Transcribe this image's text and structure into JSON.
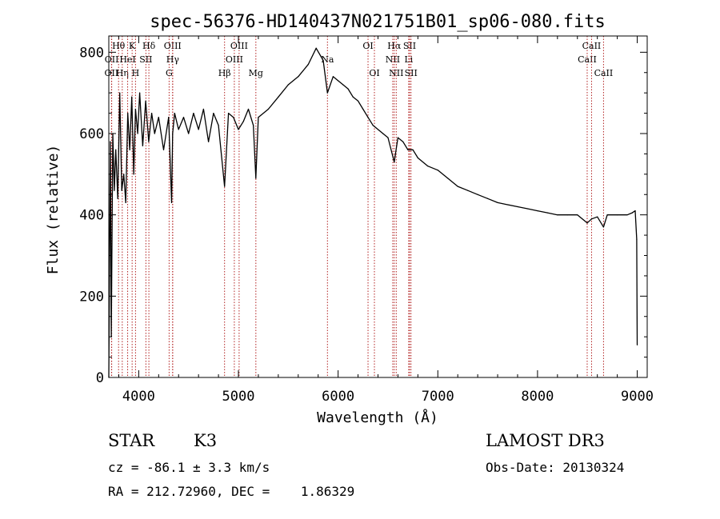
{
  "chart_data": {
    "type": "line",
    "title": "spec-56376-HD140437N021751B01_sp06-080.fits",
    "xlabel": "Wavelength (Å)",
    "ylabel": "Flux (relative)",
    "xlim": [
      3700,
      9100
    ],
    "ylim": [
      0,
      840
    ],
    "xticks": [
      4000,
      5000,
      6000,
      7000,
      8000,
      9000
    ],
    "yticks": [
      0,
      200,
      400,
      600,
      800
    ],
    "grid": false,
    "line_color": "#000000",
    "marker_color": "#b22222",
    "series": [
      {
        "x": [
          3700,
          3715,
          3725,
          3740,
          3755,
          3770,
          3790,
          3810,
          3830,
          3850,
          3870,
          3890,
          3910,
          3930,
          3950,
          3968,
          3990,
          4010,
          4040,
          4070,
          4100,
          4130,
          4160,
          4200,
          4250,
          4300,
          4330,
          4340,
          4360,
          4400,
          4450,
          4500,
          4550,
          4600,
          4650,
          4700,
          4750,
          4800,
          4861,
          4900,
          4950,
          5000,
          5050,
          5100,
          5150,
          5175,
          5200,
          5300,
          5400,
          5500,
          5600,
          5700,
          5780,
          5850,
          5893,
          5950,
          6000,
          6050,
          6100,
          6150,
          6200,
          6250,
          6300,
          6350,
          6400,
          6450,
          6500,
          6563,
          6600,
          6650,
          6700,
          6750,
          6800,
          6900,
          7000,
          7100,
          7200,
          7300,
          7400,
          7500,
          7600,
          7700,
          7800,
          7900,
          8000,
          8100,
          8200,
          8300,
          8400,
          8498,
          8542,
          8600,
          8662,
          8700,
          8800,
          8900,
          8950,
          8980,
          8995,
          9000
        ],
        "y": [
          0,
          580,
          100,
          600,
          460,
          560,
          440,
          700,
          460,
          500,
          430,
          650,
          560,
          690,
          500,
          660,
          600,
          700,
          570,
          680,
          580,
          650,
          600,
          640,
          560,
          640,
          430,
          600,
          650,
          610,
          640,
          600,
          650,
          610,
          660,
          580,
          650,
          620,
          470,
          650,
          640,
          610,
          630,
          660,
          620,
          490,
          640,
          660,
          690,
          720,
          740,
          770,
          810,
          780,
          700,
          740,
          730,
          720,
          710,
          690,
          680,
          660,
          640,
          620,
          610,
          600,
          590,
          530,
          590,
          580,
          560,
          560,
          540,
          520,
          510,
          490,
          470,
          460,
          450,
          440,
          430,
          425,
          420,
          415,
          410,
          405,
          400,
          400,
          400,
          380,
          390,
          395,
          370,
          400,
          400,
          400,
          405,
          410,
          340,
          80
        ]
      }
    ]
  },
  "lines": [
    {
      "name": "OII",
      "x": 3727,
      "row": 2
    },
    {
      "name": "OII",
      "x": 3729,
      "row": 1
    },
    {
      "name": "Hθ",
      "x": 3798,
      "row": 0
    },
    {
      "name": "Hη",
      "x": 3835,
      "row": 2
    },
    {
      "name": "HeI",
      "x": 3889,
      "row": 1
    },
    {
      "name": "K",
      "x": 3934,
      "row": 0
    },
    {
      "name": "H",
      "x": 3968,
      "row": 2
    },
    {
      "name": "SII",
      "x": 4072,
      "row": 1
    },
    {
      "name": "Hδ",
      "x": 4102,
      "row": 0
    },
    {
      "name": "G",
      "x": 4305,
      "row": 2
    },
    {
      "name": "OIII",
      "x": 4340,
      "row": 0
    },
    {
      "name": "Hγ",
      "x": 4341,
      "row": 1
    },
    {
      "name": "Hβ",
      "x": 4861,
      "row": 2
    },
    {
      "name": "OIII",
      "x": 4959,
      "row": 1
    },
    {
      "name": "OIII",
      "x": 5007,
      "row": 0
    },
    {
      "name": "Mg",
      "x": 5175,
      "row": 2
    },
    {
      "name": "Na",
      "x": 5893,
      "row": 1
    },
    {
      "name": "OI",
      "x": 6300,
      "row": 0
    },
    {
      "name": "OI",
      "x": 6364,
      "row": 2
    },
    {
      "name": "NII",
      "x": 6548,
      "row": 1
    },
    {
      "name": "Hα",
      "x": 6563,
      "row": 0
    },
    {
      "name": "NII",
      "x": 6583,
      "row": 2
    },
    {
      "name": "Li",
      "x": 6708,
      "row": 1
    },
    {
      "name": "SII",
      "x": 6717,
      "row": 0
    },
    {
      "name": "SII",
      "x": 6731,
      "row": 2
    },
    {
      "name": "CaII",
      "x": 8498,
      "row": 1
    },
    {
      "name": "CaII",
      "x": 8542,
      "row": 0
    },
    {
      "name": "CaII",
      "x": 8662,
      "row": 2
    }
  ],
  "info": {
    "object_type": "STAR",
    "subclass": "K3",
    "survey": "LAMOST DR3",
    "cz": "cz = -86.1 ± 3.3 km/s",
    "obs_date": "Obs-Date: 20130324",
    "coords": "RA = 212.72960, DEC =    1.86329"
  }
}
